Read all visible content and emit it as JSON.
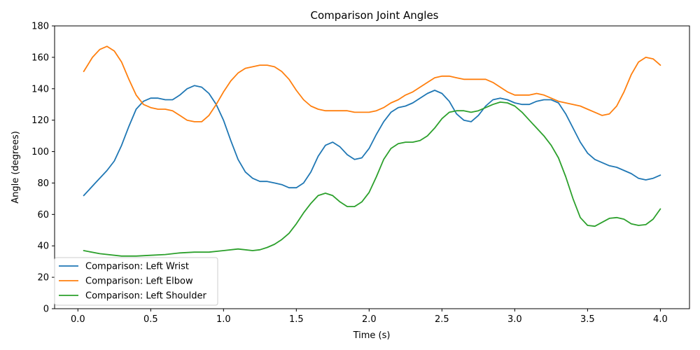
{
  "chart_data": {
    "type": "line",
    "title": "Comparison Joint Angles",
    "xlabel": "Time (s)",
    "ylabel": "Angle (degrees)",
    "xlim": [
      -0.16,
      4.2
    ],
    "ylim": [
      0,
      180
    ],
    "xticks": [
      0.0,
      0.5,
      1.0,
      1.5,
      2.0,
      2.5,
      3.0,
      3.5,
      4.0
    ],
    "xtick_labels": [
      "0.0",
      "0.5",
      "1.0",
      "1.5",
      "2.0",
      "2.5",
      "3.0",
      "3.5",
      "4.0"
    ],
    "yticks": [
      0,
      20,
      40,
      60,
      80,
      100,
      120,
      140,
      160,
      180
    ],
    "ytick_labels": [
      "0",
      "20",
      "40",
      "60",
      "80",
      "100",
      "120",
      "140",
      "160",
      "180"
    ],
    "grid": false,
    "legend_position": "bottom-left",
    "series": [
      {
        "name": "Comparison: Left Wrist",
        "color": "#1f77b4",
        "points": [
          [
            0.04,
            72
          ],
          [
            0.12,
            80
          ],
          [
            0.2,
            88
          ],
          [
            0.25,
            94
          ],
          [
            0.3,
            104
          ],
          [
            0.35,
            116
          ],
          [
            0.4,
            127
          ],
          [
            0.45,
            132
          ],
          [
            0.5,
            134
          ],
          [
            0.55,
            134
          ],
          [
            0.6,
            133
          ],
          [
            0.65,
            133
          ],
          [
            0.7,
            136
          ],
          [
            0.75,
            140
          ],
          [
            0.8,
            142
          ],
          [
            0.85,
            141
          ],
          [
            0.9,
            137
          ],
          [
            0.95,
            130
          ],
          [
            1.0,
            120
          ],
          [
            1.05,
            107
          ],
          [
            1.1,
            95
          ],
          [
            1.15,
            87
          ],
          [
            1.2,
            83
          ],
          [
            1.25,
            81
          ],
          [
            1.3,
            81
          ],
          [
            1.35,
            80
          ],
          [
            1.4,
            79
          ],
          [
            1.45,
            77
          ],
          [
            1.5,
            77
          ],
          [
            1.55,
            80
          ],
          [
            1.6,
            87
          ],
          [
            1.65,
            97
          ],
          [
            1.7,
            104
          ],
          [
            1.75,
            106
          ],
          [
            1.8,
            103
          ],
          [
            1.85,
            98
          ],
          [
            1.9,
            95
          ],
          [
            1.95,
            96
          ],
          [
            2.0,
            102
          ],
          [
            2.05,
            111
          ],
          [
            2.1,
            119
          ],
          [
            2.15,
            125
          ],
          [
            2.2,
            128
          ],
          [
            2.25,
            129
          ],
          [
            2.3,
            131
          ],
          [
            2.35,
            134
          ],
          [
            2.4,
            137
          ],
          [
            2.45,
            139
          ],
          [
            2.5,
            137
          ],
          [
            2.55,
            132
          ],
          [
            2.6,
            124
          ],
          [
            2.65,
            120
          ],
          [
            2.7,
            119
          ],
          [
            2.75,
            123
          ],
          [
            2.8,
            129
          ],
          [
            2.85,
            133
          ],
          [
            2.9,
            134
          ],
          [
            2.95,
            133
          ],
          [
            3.0,
            131
          ],
          [
            3.05,
            130
          ],
          [
            3.1,
            130
          ],
          [
            3.15,
            132
          ],
          [
            3.2,
            133
          ],
          [
            3.25,
            133
          ],
          [
            3.3,
            131
          ],
          [
            3.35,
            124
          ],
          [
            3.4,
            115
          ],
          [
            3.45,
            106
          ],
          [
            3.5,
            99
          ],
          [
            3.55,
            95
          ],
          [
            3.6,
            93
          ],
          [
            3.65,
            91
          ],
          [
            3.7,
            90
          ],
          [
            3.75,
            88
          ],
          [
            3.8,
            86
          ],
          [
            3.85,
            83
          ],
          [
            3.9,
            82
          ],
          [
            3.95,
            83
          ],
          [
            4.0,
            85
          ]
        ]
      },
      {
        "name": "Comparison: Left Elbow",
        "color": "#ff7f0e",
        "points": [
          [
            0.04,
            151
          ],
          [
            0.1,
            160
          ],
          [
            0.15,
            165
          ],
          [
            0.2,
            167
          ],
          [
            0.25,
            164
          ],
          [
            0.3,
            157
          ],
          [
            0.35,
            146
          ],
          [
            0.4,
            136
          ],
          [
            0.45,
            130
          ],
          [
            0.5,
            128
          ],
          [
            0.55,
            127
          ],
          [
            0.6,
            127
          ],
          [
            0.65,
            126
          ],
          [
            0.7,
            123
          ],
          [
            0.75,
            120
          ],
          [
            0.8,
            119
          ],
          [
            0.85,
            119
          ],
          [
            0.9,
            123
          ],
          [
            0.95,
            130
          ],
          [
            1.0,
            138
          ],
          [
            1.05,
            145
          ],
          [
            1.1,
            150
          ],
          [
            1.15,
            153
          ],
          [
            1.2,
            154
          ],
          [
            1.25,
            155
          ],
          [
            1.3,
            155
          ],
          [
            1.35,
            154
          ],
          [
            1.4,
            151
          ],
          [
            1.45,
            146
          ],
          [
            1.5,
            139
          ],
          [
            1.55,
            133
          ],
          [
            1.6,
            129
          ],
          [
            1.65,
            127
          ],
          [
            1.7,
            126
          ],
          [
            1.75,
            126
          ],
          [
            1.8,
            126
          ],
          [
            1.85,
            126
          ],
          [
            1.9,
            125
          ],
          [
            1.95,
            125
          ],
          [
            2.0,
            125
          ],
          [
            2.05,
            126
          ],
          [
            2.1,
            128
          ],
          [
            2.15,
            131
          ],
          [
            2.2,
            133
          ],
          [
            2.25,
            136
          ],
          [
            2.3,
            138
          ],
          [
            2.35,
            141
          ],
          [
            2.4,
            144
          ],
          [
            2.45,
            147
          ],
          [
            2.5,
            148
          ],
          [
            2.55,
            148
          ],
          [
            2.6,
            147
          ],
          [
            2.65,
            146
          ],
          [
            2.7,
            146
          ],
          [
            2.75,
            146
          ],
          [
            2.8,
            146
          ],
          [
            2.85,
            144
          ],
          [
            2.9,
            141
          ],
          [
            2.95,
            138
          ],
          [
            3.0,
            136
          ],
          [
            3.05,
            136
          ],
          [
            3.1,
            136
          ],
          [
            3.15,
            137
          ],
          [
            3.2,
            136
          ],
          [
            3.25,
            134
          ],
          [
            3.3,
            132
          ],
          [
            3.35,
            131
          ],
          [
            3.4,
            130
          ],
          [
            3.45,
            129
          ],
          [
            3.5,
            127
          ],
          [
            3.55,
            125
          ],
          [
            3.6,
            123
          ],
          [
            3.65,
            124
          ],
          [
            3.7,
            129
          ],
          [
            3.75,
            138
          ],
          [
            3.8,
            149
          ],
          [
            3.85,
            157
          ],
          [
            3.9,
            160
          ],
          [
            3.95,
            159
          ],
          [
            4.0,
            155
          ]
        ]
      },
      {
        "name": "Comparison: Left Shoulder",
        "color": "#2ca02c",
        "points": [
          [
            0.04,
            37
          ],
          [
            0.15,
            35
          ],
          [
            0.3,
            33.5
          ],
          [
            0.4,
            33.5
          ],
          [
            0.5,
            34
          ],
          [
            0.6,
            34.5
          ],
          [
            0.7,
            35.5
          ],
          [
            0.8,
            36
          ],
          [
            0.9,
            36
          ],
          [
            1.0,
            37
          ],
          [
            1.1,
            38
          ],
          [
            1.2,
            37
          ],
          [
            1.25,
            37.5
          ],
          [
            1.3,
            39
          ],
          [
            1.35,
            41
          ],
          [
            1.4,
            44
          ],
          [
            1.45,
            48
          ],
          [
            1.5,
            54
          ],
          [
            1.55,
            61
          ],
          [
            1.6,
            67
          ],
          [
            1.65,
            72
          ],
          [
            1.7,
            73.5
          ],
          [
            1.75,
            72
          ],
          [
            1.8,
            68
          ],
          [
            1.85,
            65
          ],
          [
            1.9,
            65
          ],
          [
            1.95,
            68
          ],
          [
            2.0,
            74
          ],
          [
            2.05,
            84
          ],
          [
            2.1,
            95
          ],
          [
            2.15,
            102
          ],
          [
            2.2,
            105
          ],
          [
            2.25,
            106
          ],
          [
            2.3,
            106
          ],
          [
            2.35,
            107
          ],
          [
            2.4,
            110
          ],
          [
            2.45,
            115
          ],
          [
            2.5,
            121
          ],
          [
            2.55,
            125
          ],
          [
            2.6,
            126
          ],
          [
            2.65,
            126
          ],
          [
            2.7,
            125
          ],
          [
            2.75,
            126
          ],
          [
            2.8,
            128
          ],
          [
            2.85,
            130
          ],
          [
            2.9,
            131.5
          ],
          [
            2.95,
            131
          ],
          [
            3.0,
            129
          ],
          [
            3.05,
            125
          ],
          [
            3.1,
            120
          ],
          [
            3.15,
            115
          ],
          [
            3.2,
            110
          ],
          [
            3.25,
            104
          ],
          [
            3.3,
            96
          ],
          [
            3.35,
            84
          ],
          [
            3.4,
            70
          ],
          [
            3.45,
            58
          ],
          [
            3.5,
            53
          ],
          [
            3.55,
            52.5
          ],
          [
            3.6,
            55
          ],
          [
            3.65,
            57.5
          ],
          [
            3.7,
            58
          ],
          [
            3.75,
            57
          ],
          [
            3.8,
            54
          ],
          [
            3.85,
            53
          ],
          [
            3.9,
            53.5
          ],
          [
            3.95,
            57
          ],
          [
            4.0,
            63.5
          ]
        ]
      }
    ]
  }
}
